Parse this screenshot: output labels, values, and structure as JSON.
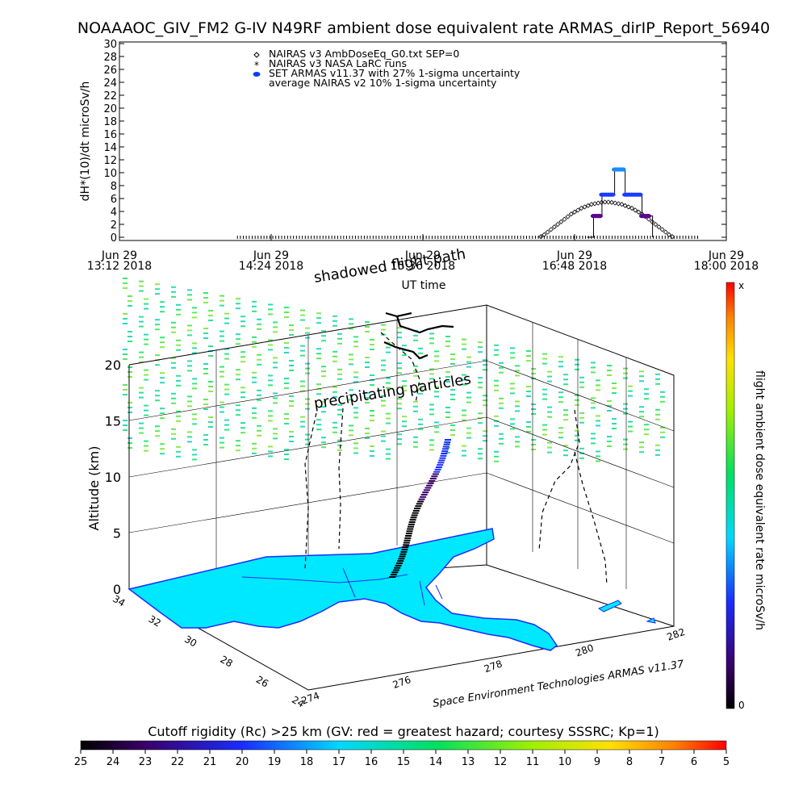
{
  "title": "NOAAAOC_GIV_FM2 G-IV   N49RF  ambient dose equivalent rate ARMAS_dirIP_Report_56940",
  "chart_data": [
    {
      "type": "scatter",
      "ylabel": "dH*(10)/dt microSv/h",
      "xlabel": "UT time",
      "ylim": [
        0,
        30
      ],
      "yticks": [
        0,
        2,
        4,
        6,
        8,
        10,
        12,
        14,
        16,
        18,
        20,
        22,
        24,
        26,
        28,
        30
      ],
      "xlim_min": [
        0,
        288
      ],
      "xticks": [
        {
          "min": 0,
          "l1": "Jun 29",
          "l2": "13:12 2018"
        },
        {
          "min": 72,
          "l1": "Jun 29",
          "l2": "14:24 2018"
        },
        {
          "min": 144,
          "l1": "Jun 29",
          "l2": "15:36 2018"
        },
        {
          "min": 216,
          "l1": "Jun 29",
          "l2": "16:48 2018"
        },
        {
          "min": 288,
          "l1": "Jun 29",
          "l2": "18:00 2018"
        }
      ],
      "legend": [
        {
          "marker": "diamond",
          "label": "NAIRAS v3 AmbDoseEq_G0.txt SEP=0"
        },
        {
          "marker": "star",
          "label": "NAIRAS v3 NASA LaRC runs"
        },
        {
          "marker": "dot",
          "label": "SET ARMAS v11.37 with 27% 1-sigma uncertainty"
        },
        {
          "marker": "none",
          "label": "average NAIRAS v2 10% 1-sigma uncertainty"
        }
      ],
      "series": [
        {
          "name": "NAIRAS v3 AmbDoseEq_G0.txt SEP=0",
          "x_start_min": 200,
          "x_step_min": 1.6,
          "values": [
            0.1,
            0.4,
            0.8,
            1.2,
            1.6,
            2.0,
            2.4,
            2.8,
            3.2,
            3.6,
            3.9,
            4.2,
            4.5,
            4.7,
            4.9,
            5.1,
            5.2,
            5.3,
            5.4,
            5.45,
            5.45,
            5.4,
            5.3,
            5.2,
            5.1,
            4.9,
            4.7,
            4.5,
            4.2,
            3.9,
            3.6,
            3.2,
            2.8,
            2.4,
            2.0,
            1.6,
            1.2,
            0.8,
            0.4,
            0.1
          ]
        },
        {
          "name": "NAIRAS v3 NASA LaRC runs",
          "segments": [
            [
              56,
              275
            ]
          ],
          "value": 0
        },
        {
          "name": "SET ARMAS v11.37 with 27% 1-sigma uncertainty",
          "points": [
            [
              222,
              0
            ],
            [
              224,
              0
            ],
            [
              225,
              3.3
            ],
            [
              226,
              3.3
            ],
            [
              227,
              3.3
            ],
            [
              228,
              3.3
            ],
            [
              229,
              6.6
            ],
            [
              230,
              6.6
            ],
            [
              231,
              6.6
            ],
            [
              232,
              6.6
            ],
            [
              233,
              6.6
            ],
            [
              234,
              6.6
            ],
            [
              235,
              10.5
            ],
            [
              236,
              10.5
            ],
            [
              237,
              10.5
            ],
            [
              238,
              10.5
            ],
            [
              239,
              10.5
            ],
            [
              240,
              6.6
            ],
            [
              241,
              6.6
            ],
            [
              242,
              6.6
            ],
            [
              243,
              6.6
            ],
            [
              244,
              6.6
            ],
            [
              245,
              6.6
            ],
            [
              246,
              6.6
            ],
            [
              247,
              6.6
            ],
            [
              248,
              3.3
            ],
            [
              249,
              3.3
            ],
            [
              250,
              3.3
            ],
            [
              251,
              3.3
            ],
            [
              253,
              0
            ]
          ]
        }
      ]
    },
    {
      "type": "3d-flight-track",
      "annotations": [
        "shadowed flight path",
        "precipitating particles"
      ],
      "zlabel": "Altitude (km)",
      "zticks": [
        0,
        5,
        10,
        15,
        20
      ],
      "lat_ticks": [
        24,
        26,
        28,
        30,
        32,
        34
      ],
      "lon_ticks": [
        274,
        276,
        278,
        280,
        282
      ],
      "credit": "Space Environment Technologies ARMAS v11.37",
      "right_colorbar": {
        "label": "flight ambient dose equivalent rate microSv/h",
        "top_label": "x",
        "bottom_label": "0"
      },
      "bottom_colorbar": {
        "label": "Cutoff rigidity (Rc) >25 km (GV: red = greatest hazard; courtesy SSSRC; Kp=1)",
        "ticks": [
          "25",
          "24",
          "23",
          "22",
          "21",
          "20",
          "19",
          "18",
          "17",
          "16",
          "15",
          "14",
          "13",
          "12",
          "11",
          "10",
          "9",
          "8",
          "7",
          "6",
          "5"
        ]
      }
    }
  ]
}
